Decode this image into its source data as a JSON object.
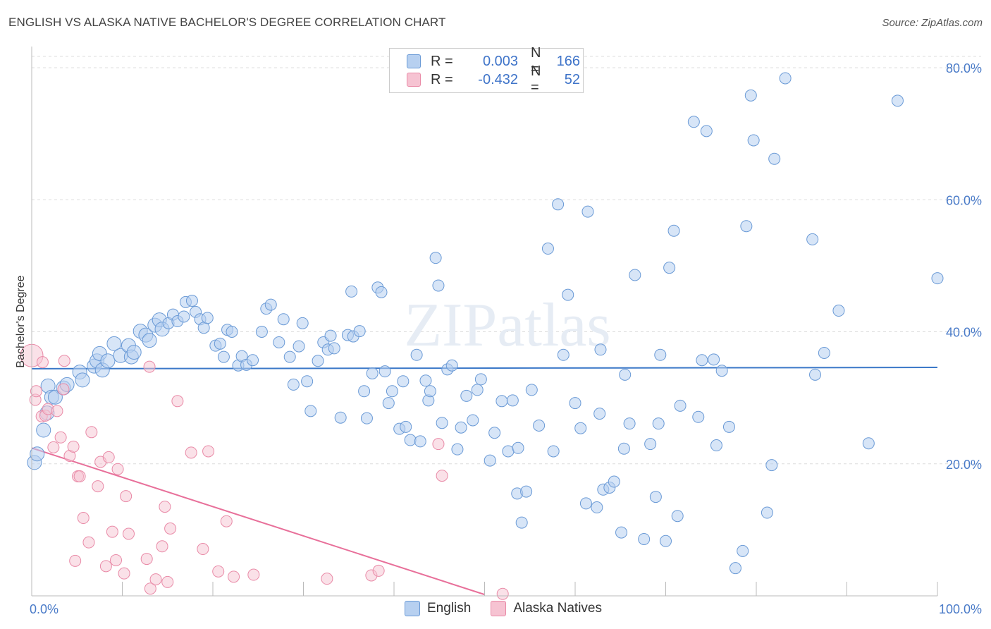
{
  "title": "ENGLISH VS ALASKA NATIVE BACHELOR'S DEGREE CORRELATION CHART",
  "source": "Source: ZipAtlas.com",
  "colors": {
    "blue": "#6a9ad6",
    "blue_fill": "#b7d0f0",
    "pink": "#e98aa7",
    "pink_fill": "#f6c3d2",
    "blue_line": "#3b78c8",
    "pink_line": "#e8709a"
  },
  "legend": {
    "rows": [
      {
        "label": "R =",
        "r": "0.003",
        "n_label": "N =",
        "n": "166"
      },
      {
        "label": "R =",
        "r": "-0.432",
        "n_label": "N =",
        "n": "52"
      }
    ]
  },
  "bottom_legend": [
    "English",
    "Alaska Natives"
  ],
  "watermark": "ZIPatlas",
  "chart_data": {
    "type": "scatter",
    "title": "ENGLISH VS ALASKA NATIVE BACHELOR'S DEGREE CORRELATION CHART",
    "xlabel": "",
    "ylabel": "Bachelor's Degree",
    "xlim": [
      0,
      100
    ],
    "ylim": [
      0,
      80
    ],
    "x_tick_labels": [
      "0.0%",
      "100.0%"
    ],
    "y_tick_labels": [
      "20.0%",
      "40.0%",
      "60.0%",
      "80.0%"
    ],
    "y_ticks": [
      20,
      40,
      60,
      80
    ],
    "series": [
      {
        "name": "English",
        "r": 0.003,
        "n": 166,
        "trend": [
          [
            0,
            34.4
          ],
          [
            100,
            34.6
          ]
        ],
        "points": [
          [
            0.3,
            20.2
          ],
          [
            0.6,
            21.5
          ],
          [
            1.3,
            25.1
          ],
          [
            1.7,
            27.7
          ],
          [
            1.8,
            31.8
          ],
          [
            2.2,
            30.1
          ],
          [
            2.6,
            30.1
          ],
          [
            3.5,
            31.5
          ],
          [
            3.9,
            32.0
          ],
          [
            5.3,
            33.9
          ],
          [
            5.6,
            32.7
          ],
          [
            6.9,
            34.8
          ],
          [
            7.2,
            35.6
          ],
          [
            7.5,
            36.7
          ],
          [
            7.8,
            34.2
          ],
          [
            8.4,
            35.6
          ],
          [
            9.1,
            38.2
          ],
          [
            9.8,
            36.4
          ],
          [
            10.7,
            37.9
          ],
          [
            11.0,
            36.2
          ],
          [
            11.3,
            36.9
          ],
          [
            12.0,
            40.1
          ],
          [
            12.6,
            39.5
          ],
          [
            13.0,
            38.7
          ],
          [
            13.6,
            41.0
          ],
          [
            14.1,
            41.8
          ],
          [
            14.4,
            40.4
          ],
          [
            15.1,
            41.3
          ],
          [
            15.6,
            42.6
          ],
          [
            16.1,
            41.6
          ],
          [
            16.8,
            42.3
          ],
          [
            17.0,
            44.5
          ],
          [
            17.7,
            44.7
          ],
          [
            18.1,
            43.0
          ],
          [
            18.6,
            41.9
          ],
          [
            19.0,
            40.6
          ],
          [
            19.4,
            42.1
          ],
          [
            20.3,
            37.9
          ],
          [
            20.8,
            38.2
          ],
          [
            21.2,
            36.2
          ],
          [
            21.6,
            40.3
          ],
          [
            22.1,
            40.0
          ],
          [
            22.8,
            34.9
          ],
          [
            23.2,
            36.3
          ],
          [
            23.7,
            35.0
          ],
          [
            24.4,
            35.7
          ],
          [
            25.4,
            40.0
          ],
          [
            25.9,
            43.5
          ],
          [
            26.4,
            44.1
          ],
          [
            27.3,
            38.4
          ],
          [
            27.8,
            41.9
          ],
          [
            28.5,
            36.2
          ],
          [
            28.9,
            32.0
          ],
          [
            29.5,
            37.8
          ],
          [
            29.9,
            41.3
          ],
          [
            30.4,
            32.5
          ],
          [
            30.8,
            28.0
          ],
          [
            31.6,
            35.6
          ],
          [
            32.2,
            38.4
          ],
          [
            32.7,
            37.3
          ],
          [
            33.0,
            39.4
          ],
          [
            33.4,
            37.5
          ],
          [
            34.1,
            27.0
          ],
          [
            34.9,
            39.5
          ],
          [
            35.3,
            46.1
          ],
          [
            35.5,
            39.3
          ],
          [
            36.2,
            40.1
          ],
          [
            36.7,
            31.0
          ],
          [
            37.0,
            26.9
          ],
          [
            37.6,
            33.7
          ],
          [
            38.2,
            46.7
          ],
          [
            38.6,
            46.0
          ],
          [
            39.0,
            34.0
          ],
          [
            39.4,
            29.2
          ],
          [
            39.8,
            31.0
          ],
          [
            40.6,
            25.3
          ],
          [
            41.0,
            32.5
          ],
          [
            41.3,
            25.6
          ],
          [
            41.8,
            23.6
          ],
          [
            42.5,
            36.5
          ],
          [
            42.9,
            23.4
          ],
          [
            43.5,
            32.6
          ],
          [
            43.8,
            29.6
          ],
          [
            44.0,
            31.0
          ],
          [
            44.6,
            51.2
          ],
          [
            44.9,
            47.0
          ],
          [
            45.3,
            26.2
          ],
          [
            45.9,
            34.3
          ],
          [
            46.4,
            34.9
          ],
          [
            47.0,
            22.2
          ],
          [
            47.4,
            25.5
          ],
          [
            48.0,
            30.3
          ],
          [
            48.7,
            26.6
          ],
          [
            49.2,
            31.2
          ],
          [
            49.6,
            32.8
          ],
          [
            50.6,
            20.5
          ],
          [
            51.1,
            24.7
          ],
          [
            51.9,
            29.5
          ],
          [
            52.6,
            21.9
          ],
          [
            53.1,
            29.6
          ],
          [
            53.7,
            22.4
          ],
          [
            53.6,
            15.5
          ],
          [
            54.1,
            11.1
          ],
          [
            54.6,
            15.8
          ],
          [
            55.2,
            31.2
          ],
          [
            56.0,
            25.8
          ],
          [
            57.0,
            52.6
          ],
          [
            57.6,
            21.9
          ],
          [
            58.1,
            59.3
          ],
          [
            58.7,
            36.5
          ],
          [
            59.2,
            45.6
          ],
          [
            60.0,
            29.2
          ],
          [
            60.6,
            25.4
          ],
          [
            61.2,
            14.0
          ],
          [
            61.4,
            58.2
          ],
          [
            62.4,
            13.4
          ],
          [
            62.7,
            27.6
          ],
          [
            62.8,
            37.3
          ],
          [
            63.1,
            16.1
          ],
          [
            63.8,
            16.4
          ],
          [
            64.3,
            17.3
          ],
          [
            65.1,
            9.6
          ],
          [
            65.4,
            22.3
          ],
          [
            65.5,
            33.5
          ],
          [
            66.0,
            26.1
          ],
          [
            66.6,
            48.6
          ],
          [
            67.6,
            8.6
          ],
          [
            68.3,
            23.0
          ],
          [
            68.9,
            15.0
          ],
          [
            69.2,
            26.1
          ],
          [
            69.4,
            36.5
          ],
          [
            70.0,
            8.3
          ],
          [
            70.4,
            49.7
          ],
          [
            70.9,
            55.3
          ],
          [
            71.3,
            12.1
          ],
          [
            71.6,
            28.8
          ],
          [
            73.1,
            71.8
          ],
          [
            73.6,
            27.1
          ],
          [
            74.0,
            35.7
          ],
          [
            74.5,
            70.4
          ],
          [
            75.3,
            35.8
          ],
          [
            75.6,
            22.8
          ],
          [
            76.2,
            34.1
          ],
          [
            77.0,
            25.6
          ],
          [
            77.7,
            4.2
          ],
          [
            78.5,
            6.8
          ],
          [
            78.9,
            56.0
          ],
          [
            79.4,
            75.8
          ],
          [
            79.7,
            69.0
          ],
          [
            81.2,
            12.6
          ],
          [
            81.7,
            19.8
          ],
          [
            82.0,
            66.2
          ],
          [
            83.2,
            78.4
          ],
          [
            86.2,
            54.0
          ],
          [
            86.5,
            33.5
          ],
          [
            87.5,
            36.8
          ],
          [
            89.1,
            43.2
          ],
          [
            92.4,
            23.1
          ],
          [
            95.6,
            75.0
          ],
          [
            100.0,
            48.1
          ]
        ]
      },
      {
        "name": "Alaska Natives",
        "r": -0.432,
        "n": 52,
        "trend": [
          [
            0,
            22.4
          ],
          [
            50,
            0.2
          ]
        ],
        "points": [
          [
            0.0,
            36.4
          ],
          [
            0.4,
            29.7
          ],
          [
            0.5,
            31.0
          ],
          [
            1.1,
            27.2
          ],
          [
            1.2,
            35.4
          ],
          [
            1.5,
            27.3
          ],
          [
            1.8,
            28.3
          ],
          [
            2.4,
            22.5
          ],
          [
            2.8,
            28.0
          ],
          [
            3.2,
            24.0
          ],
          [
            3.5,
            31.3
          ],
          [
            3.6,
            35.6
          ],
          [
            4.2,
            21.2
          ],
          [
            4.6,
            22.6
          ],
          [
            4.8,
            5.3
          ],
          [
            5.1,
            18.1
          ],
          [
            5.3,
            18.1
          ],
          [
            5.7,
            11.8
          ],
          [
            6.3,
            8.1
          ],
          [
            6.6,
            24.8
          ],
          [
            7.3,
            16.6
          ],
          [
            7.6,
            20.3
          ],
          [
            8.2,
            4.5
          ],
          [
            8.5,
            21.0
          ],
          [
            8.9,
            9.7
          ],
          [
            9.3,
            5.4
          ],
          [
            9.5,
            19.2
          ],
          [
            10.2,
            3.4
          ],
          [
            10.4,
            15.1
          ],
          [
            10.7,
            9.4
          ],
          [
            12.7,
            5.6
          ],
          [
            13.0,
            34.7
          ],
          [
            13.1,
            1.1
          ],
          [
            13.7,
            2.5
          ],
          [
            14.4,
            7.5
          ],
          [
            14.7,
            13.5
          ],
          [
            15.0,
            2.1
          ],
          [
            15.3,
            10.2
          ],
          [
            16.1,
            29.5
          ],
          [
            17.6,
            21.7
          ],
          [
            18.9,
            7.1
          ],
          [
            19.5,
            21.9
          ],
          [
            20.6,
            3.7
          ],
          [
            21.5,
            11.3
          ],
          [
            22.3,
            2.9
          ],
          [
            24.5,
            3.2
          ],
          [
            32.6,
            2.6
          ],
          [
            37.5,
            3.1
          ],
          [
            38.3,
            3.8
          ],
          [
            44.9,
            23.0
          ],
          [
            45.3,
            18.2
          ],
          [
            52.0,
            0.3
          ]
        ]
      }
    ]
  }
}
